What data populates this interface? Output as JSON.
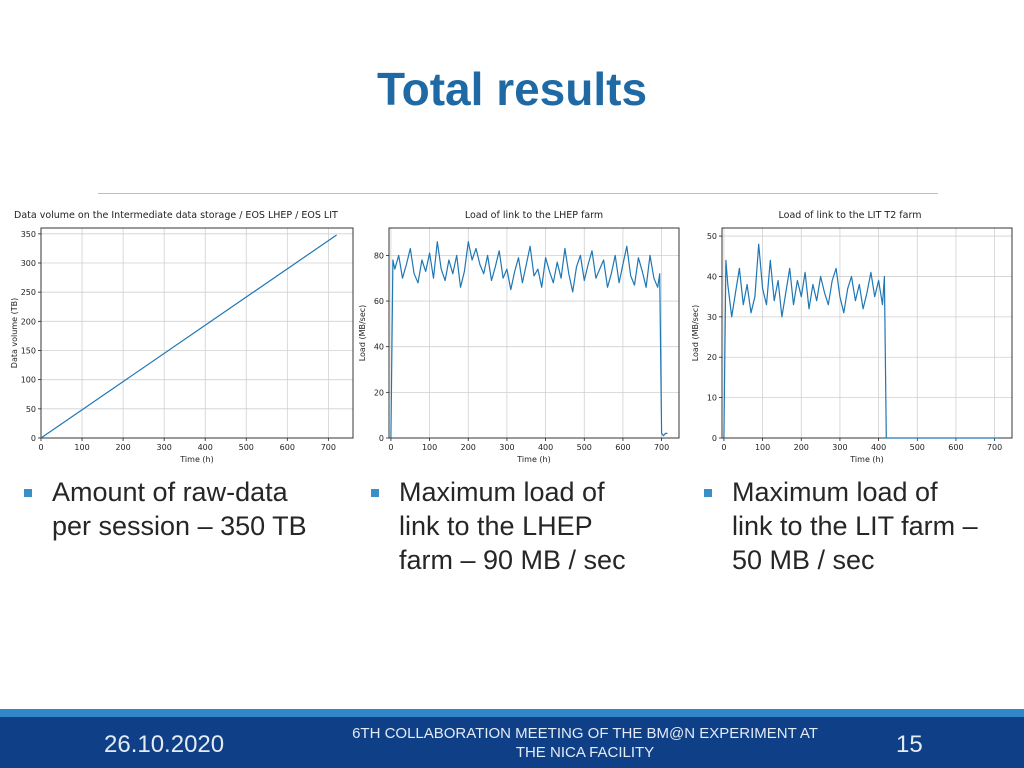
{
  "slide": {
    "title": "Total results"
  },
  "chart_data": [
    {
      "type": "line",
      "title": "Data volume on the Intermediate data storage / EOS LHEP / EOS LIT",
      "xlabel": "Time (h)",
      "ylabel": "Data volume (TB)",
      "xlim": [
        0,
        760
      ],
      "ylim": [
        0,
        360
      ],
      "xticks": [
        0,
        100,
        200,
        300,
        400,
        500,
        600,
        700
      ],
      "yticks": [
        0,
        50,
        100,
        150,
        200,
        250,
        300,
        350
      ],
      "grid": true,
      "color": "#1f77b4",
      "x": [
        0,
        720
      ],
      "y": [
        0,
        348
      ]
    },
    {
      "type": "line",
      "title": "Load of link to the LHEP farm",
      "xlabel": "Time (h)",
      "ylabel": "Load (MB/sec)",
      "xlim": [
        -5,
        745
      ],
      "ylim": [
        0,
        92
      ],
      "xticks": [
        0,
        100,
        200,
        300,
        400,
        500,
        600,
        700
      ],
      "yticks": [
        0,
        20,
        40,
        60,
        80
      ],
      "grid": true,
      "color": "#1f77b4",
      "x": [
        0,
        5,
        10,
        20,
        30,
        40,
        50,
        60,
        70,
        80,
        90,
        100,
        110,
        120,
        130,
        140,
        150,
        160,
        170,
        180,
        190,
        200,
        210,
        220,
        230,
        240,
        250,
        260,
        270,
        280,
        290,
        300,
        310,
        320,
        330,
        340,
        350,
        360,
        370,
        380,
        390,
        400,
        410,
        420,
        430,
        440,
        450,
        460,
        470,
        480,
        490,
        500,
        510,
        520,
        530,
        540,
        550,
        560,
        570,
        580,
        590,
        600,
        610,
        620,
        630,
        640,
        650,
        660,
        670,
        680,
        690,
        695,
        700,
        705,
        710,
        715
      ],
      "y": [
        0,
        78,
        74,
        80,
        70,
        76,
        83,
        72,
        68,
        78,
        73,
        81,
        70,
        86,
        74,
        69,
        78,
        72,
        80,
        66,
        73,
        86,
        78,
        83,
        76,
        72,
        80,
        69,
        75,
        82,
        70,
        74,
        65,
        73,
        79,
        68,
        76,
        84,
        71,
        74,
        66,
        79,
        73,
        68,
        77,
        70,
        83,
        72,
        64,
        75,
        80,
        69,
        76,
        82,
        70,
        74,
        78,
        66,
        72,
        80,
        68,
        76,
        84,
        71,
        67,
        79,
        73,
        66,
        80,
        70,
        66,
        72,
        2,
        1,
        2,
        2
      ]
    },
    {
      "type": "line",
      "title": "Load of link to the LIT T2 farm",
      "xlabel": "Time (h)",
      "ylabel": "Load (MB/sec)",
      "xlim": [
        -5,
        745
      ],
      "ylim": [
        0,
        52
      ],
      "xticks": [
        0,
        100,
        200,
        300,
        400,
        500,
        600,
        700
      ],
      "yticks": [
        0,
        10,
        20,
        30,
        40,
        50
      ],
      "grid": true,
      "color": "#1f77b4",
      "x": [
        0,
        5,
        10,
        20,
        30,
        40,
        50,
        60,
        70,
        80,
        90,
        100,
        110,
        120,
        130,
        140,
        150,
        160,
        170,
        180,
        190,
        200,
        210,
        220,
        230,
        240,
        250,
        260,
        270,
        280,
        290,
        300,
        310,
        320,
        330,
        340,
        350,
        360,
        370,
        380,
        390,
        400,
        410,
        415,
        420,
        425,
        500,
        600,
        700,
        710
      ],
      "y": [
        0,
        44,
        38,
        30,
        36,
        42,
        33,
        38,
        31,
        35,
        48,
        37,
        33,
        44,
        34,
        39,
        30,
        36,
        42,
        33,
        39,
        35,
        41,
        32,
        38,
        34,
        40,
        36,
        33,
        39,
        42,
        35,
        31,
        37,
        40,
        34,
        38,
        32,
        36,
        41,
        35,
        39,
        33,
        40,
        0,
        0,
        0,
        0,
        0,
        0
      ]
    }
  ],
  "bullets": [
    {
      "line1": "Amount of raw-data",
      "line2": "per session – 350 TB",
      "line3": ""
    },
    {
      "line1": "Maximum load of",
      "line2": "link to the LHEP",
      "line3": "farm – 90 MB / sec"
    },
    {
      "line1": "Maximum load of",
      "line2": "link to the LIT farm –",
      "line3": "50 MB / sec"
    }
  ],
  "footer": {
    "date": "26.10.2020",
    "conference_line1": "6TH COLLABORATION MEETING OF THE BM@N EXPERIMENT  AT",
    "conference_line2": "THE NICA FACILITY",
    "page": "15"
  },
  "colors": {
    "title": "#1f6aa5",
    "footer_bg": "#0f3f86",
    "footer_stripe": "#2f86c8",
    "bullet": "#3a8fc6",
    "line": "#1f77b4"
  }
}
